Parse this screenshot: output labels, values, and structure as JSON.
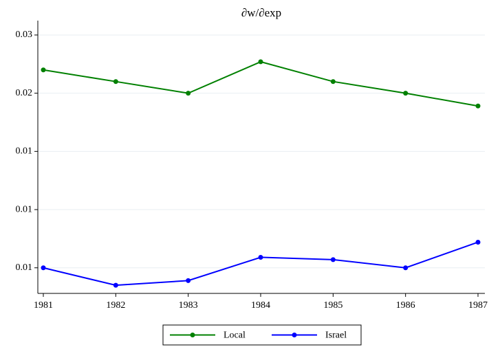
{
  "chart_data": {
    "type": "line",
    "title": "∂w/∂exp",
    "x": [
      1981,
      1982,
      1983,
      1984,
      1985,
      1986,
      1987
    ],
    "series": [
      {
        "name": "Local",
        "color": "#008000",
        "values": [
          0.022,
          0.021,
          0.02,
          0.0227,
          0.021,
          0.02,
          0.0189
        ]
      },
      {
        "name": "Israel",
        "color": "#0000ff",
        "values": [
          0.005,
          0.0035,
          0.0039,
          0.0059,
          0.0057,
          0.005,
          0.0072
        ]
      }
    ],
    "xlim": [
      1981,
      1987
    ],
    "xticks": [
      1981,
      1982,
      1983,
      1984,
      1985,
      1986,
      1987
    ],
    "ylim": [
      0.0028,
      0.026
    ],
    "yticks": [
      {
        "value": 0.005,
        "label": "0.01"
      },
      0.01,
      {
        "value": 0.015,
        "label": "0.01"
      },
      0.02,
      {
        "value": 0.025,
        "label": "0.03"
      }
    ],
    "grid": true,
    "legend": "bottom"
  }
}
